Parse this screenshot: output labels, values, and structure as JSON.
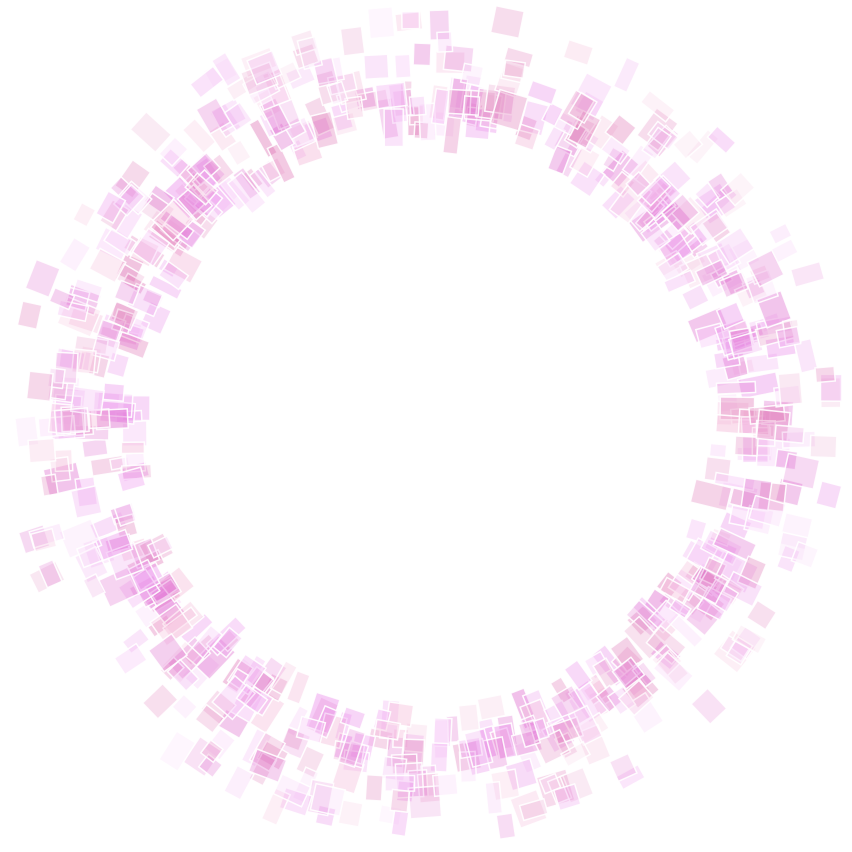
{
  "artwork": {
    "kind": "generative-ring",
    "shape": "ring",
    "element": "rotated-rectangle",
    "palette": {
      "background": "#ffffff",
      "tile_colors": [
        "#e98be9",
        "#f0a8f0",
        "#dd66cc",
        "#f4b8d8",
        "#f6c6f6",
        "#e07ab8"
      ],
      "tile_border": "#ffffff"
    },
    "rings": [
      {
        "name": "inner-band",
        "density": "dense"
      },
      {
        "name": "middle-band",
        "density": "medium"
      },
      {
        "name": "outer-band",
        "density": "sparse"
      }
    ]
  }
}
